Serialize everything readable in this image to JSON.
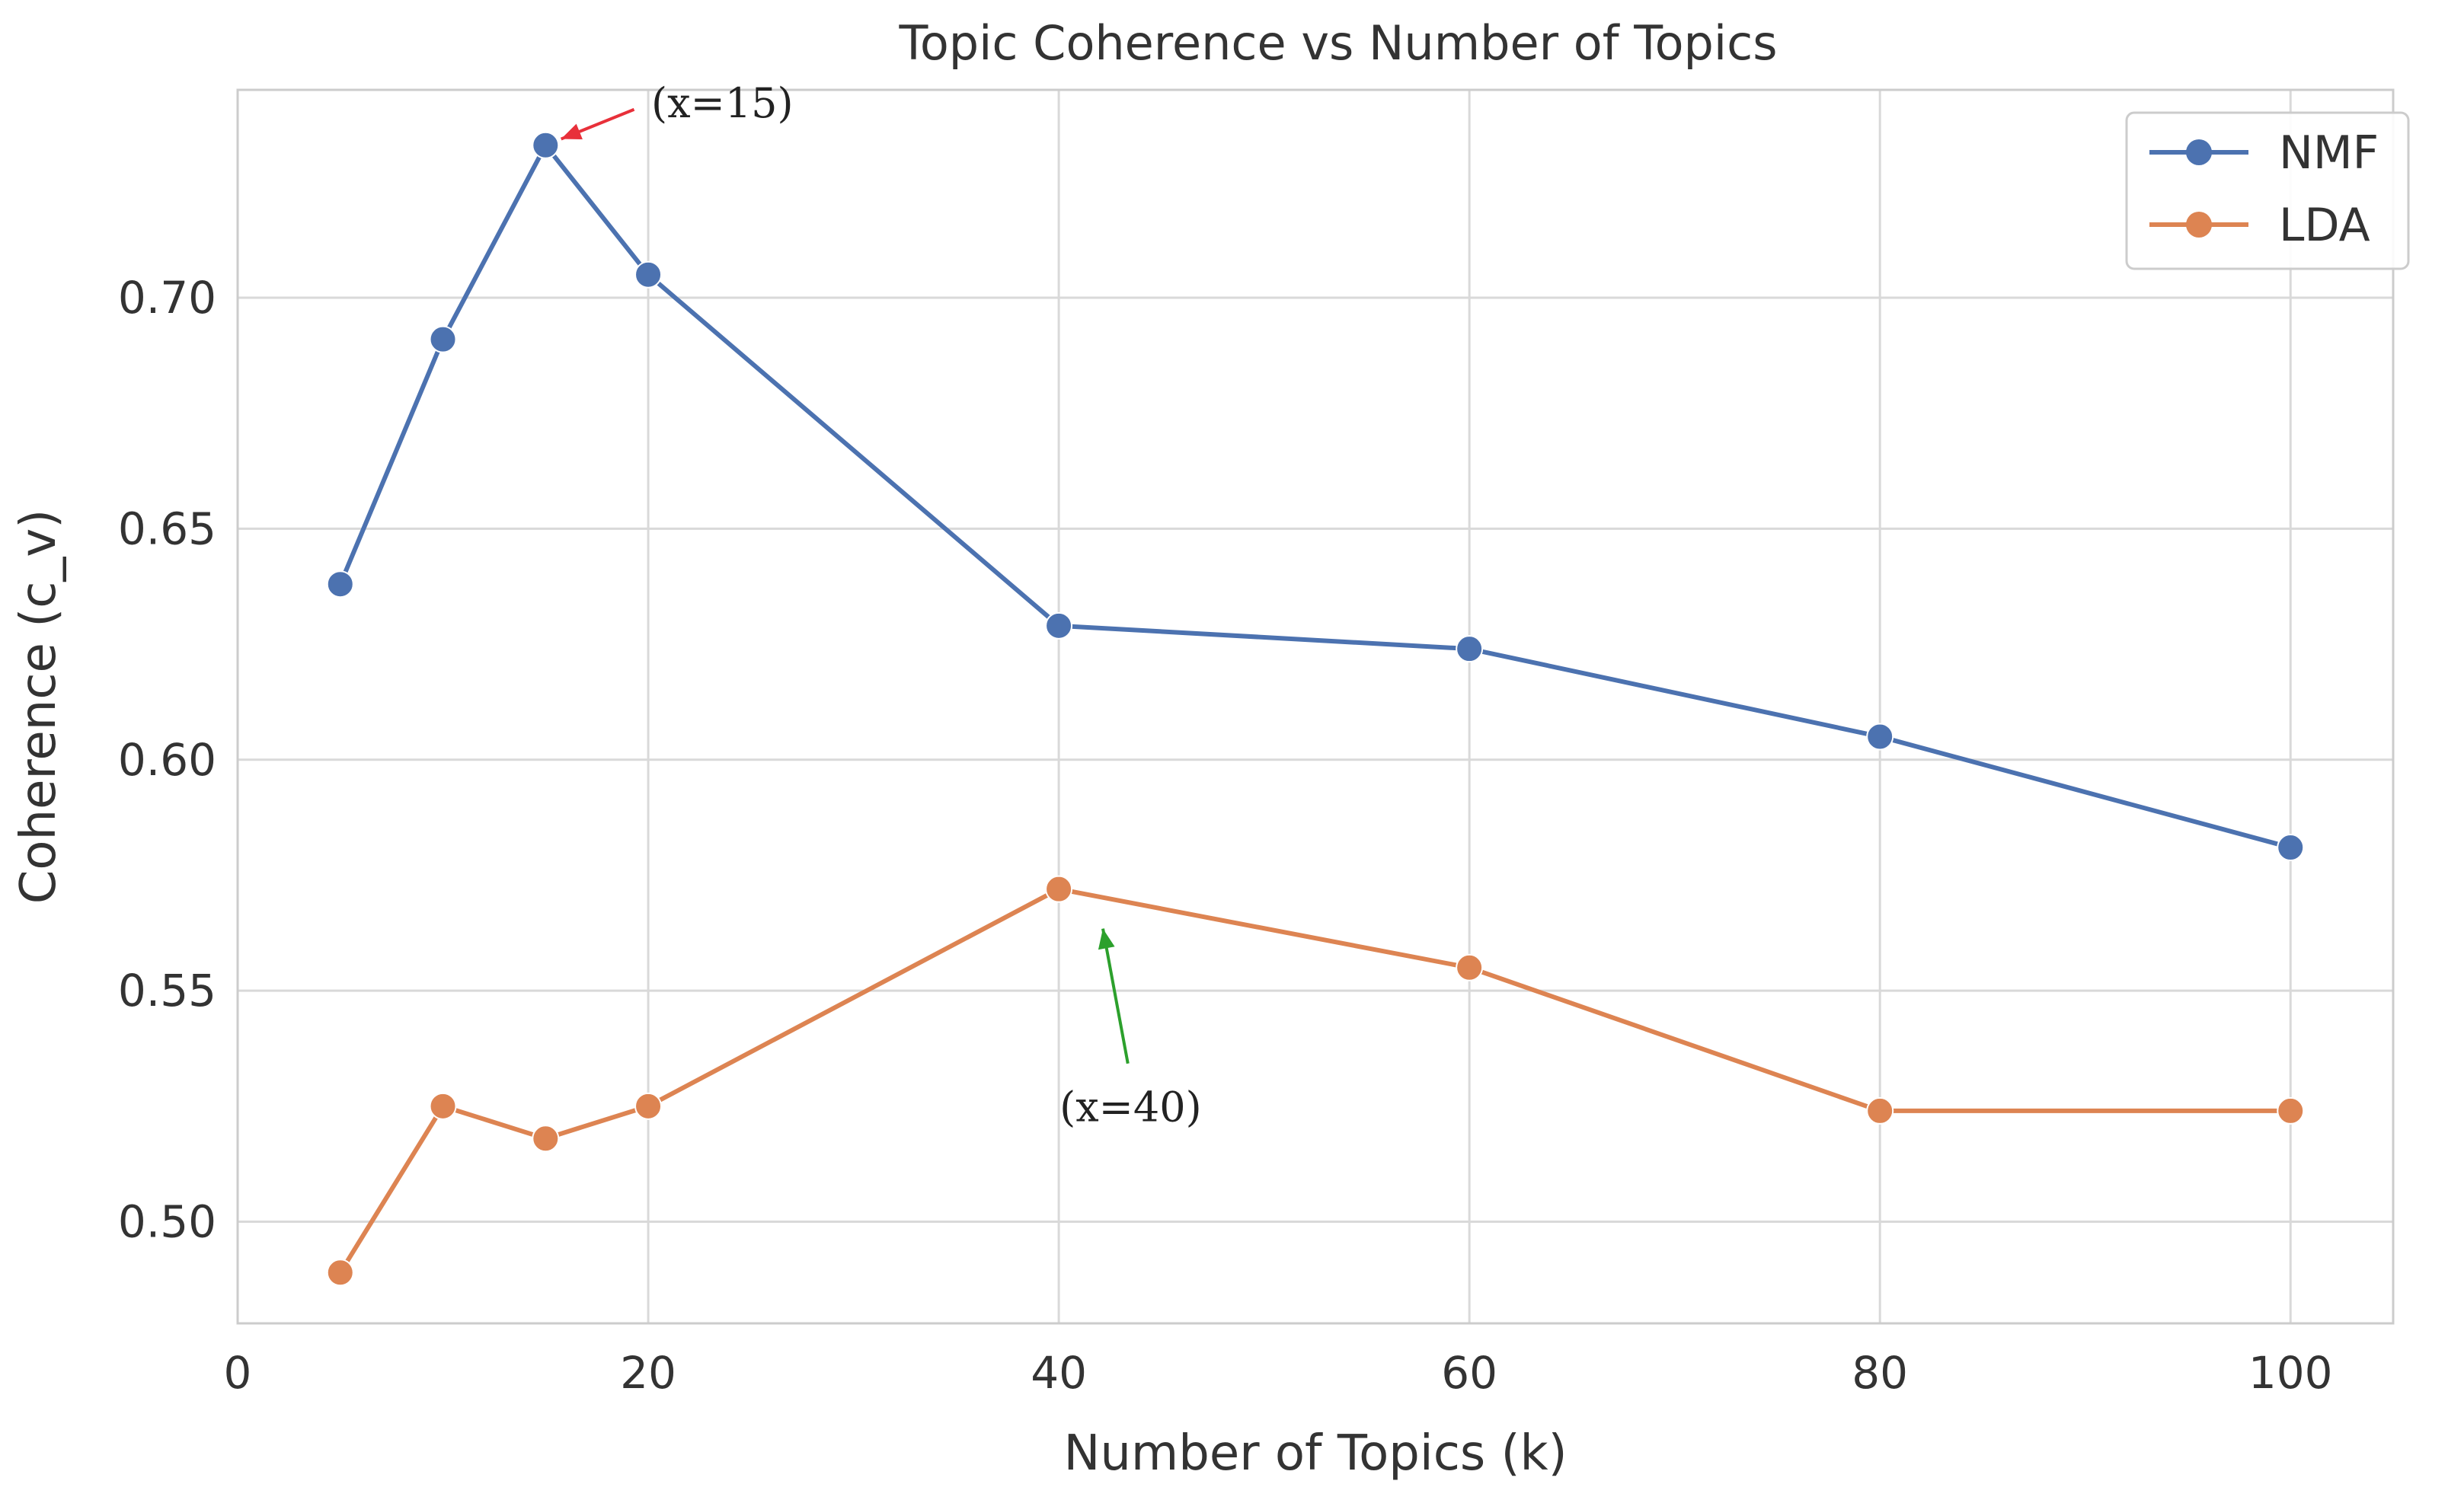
{
  "chart_data": {
    "type": "line",
    "title": "Topic Coherence vs Number of Topics",
    "xlabel": "Number of Topics (k)",
    "ylabel": "Coherence (c_v)",
    "xlim": [
      0,
      105
    ],
    "ylim": [
      0.478,
      0.745
    ],
    "xticks": [
      0,
      20,
      40,
      60,
      80,
      100
    ],
    "xtick_labels": [
      "0",
      "20",
      "40",
      "60",
      "80",
      "100"
    ],
    "yticks": [
      0.5,
      0.55,
      0.6,
      0.65,
      0.7
    ],
    "ytick_labels": [
      "0.50",
      "0.55",
      "0.60",
      "0.65",
      "0.70"
    ],
    "grid": true,
    "legend_position": "top-right",
    "x": [
      5,
      10,
      15,
      20,
      40,
      60,
      80,
      100
    ],
    "series": [
      {
        "name": "NMF",
        "color": "#4c72b0",
        "values": [
          0.638,
          0.691,
          0.733,
          0.705,
          0.629,
          0.624,
          0.605,
          0.581
        ]
      },
      {
        "name": "LDA",
        "color": "#dd8452",
        "values": [
          0.489,
          0.525,
          0.518,
          0.525,
          0.572,
          0.555,
          0.524,
          0.524
        ]
      }
    ],
    "annotations": [
      {
        "text": "(x=15)",
        "series": "NMF",
        "point_x": 15,
        "point_y": 0.733,
        "text_x": 20,
        "text_y": 0.742,
        "color": "#e8303a"
      },
      {
        "text": "(x=40)",
        "series": "LDA",
        "point_x": 42,
        "point_y": 0.567,
        "text_x": 43.5,
        "text_y": 0.531,
        "color": "#2ca02c"
      }
    ]
  }
}
